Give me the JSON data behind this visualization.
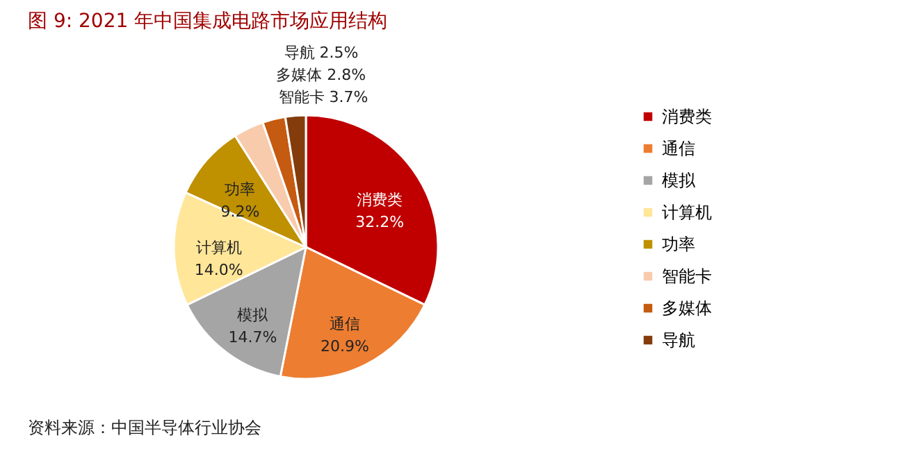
{
  "chart_data": {
    "type": "pie",
    "title": "图 9:   2021 年中国集成电路市场应用结构",
    "categories": [
      "消费类",
      "通信",
      "模拟",
      "计算机",
      "功率",
      "智能卡",
      "多媒体",
      "导航"
    ],
    "values": [
      32.2,
      20.9,
      14.7,
      14.0,
      9.2,
      3.7,
      2.8,
      2.5
    ],
    "value_labels": [
      "32.2%",
      "20.9%",
      "14.7%",
      "14.0%",
      "9.2%",
      "3.7%",
      "2.8%",
      "2.5%"
    ],
    "colors": [
      "#c00000",
      "#ed7d31",
      "#a5a5a5",
      "#ffe699",
      "#bf9000",
      "#f8cbad",
      "#c55a11",
      "#843c0c"
    ],
    "legend": "right",
    "annotations": [
      "资料来源：中国半导体行业协会"
    ]
  }
}
